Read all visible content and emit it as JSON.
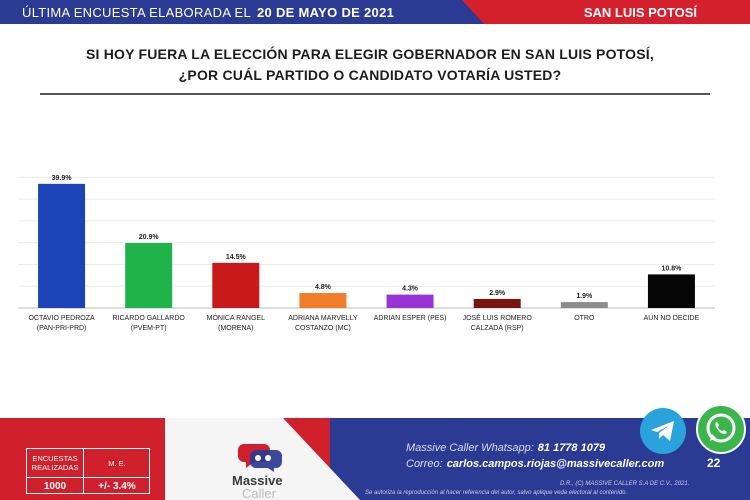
{
  "header": {
    "survey_label": "ÚLTIMA ENCUESTA ELABORADA EL",
    "survey_date": "20 DE MAYO DE 2021",
    "region": "SAN LUIS POTOSÍ"
  },
  "title": {
    "line1": "SI HOY FUERA LA ELECCIÓN PARA ELEGIR GOBERNADOR EN SAN LUIS POTOSÍ,",
    "line2": "¿POR CUÁL PARTIDO O CANDIDATO VOTARÍA USTED?"
  },
  "chart_data": {
    "type": "bar",
    "categories": [
      [
        "OCTAVIO PEDROZA",
        "(PAN-PRI-PRD)"
      ],
      [
        "RICARDO GALLARDO",
        "(PVEM-PT)"
      ],
      [
        "MÓNICA RANGEL",
        "(MORENA)"
      ],
      [
        "ADRIANA MARVELLY",
        "COSTANZO (MC)"
      ],
      [
        "ADRIAN ESPER (PES)"
      ],
      [
        "JOSÉ LUIS ROMERO",
        "CALZADA (RSP)"
      ],
      [
        "OTRO"
      ],
      [
        "AÚN NO DECIDE"
      ]
    ],
    "values": [
      39.9,
      20.9,
      14.5,
      4.8,
      4.3,
      2.9,
      1.9,
      10.8
    ],
    "value_labels": [
      "39.9%",
      "20.9%",
      "14.5%",
      "4.8%",
      "4.3%",
      "2.9%",
      "1.9%",
      "10.8%"
    ],
    "colors": [
      "#1c44b8",
      "#20b34a",
      "#c81a1a",
      "#f07d2a",
      "#9933d6",
      "#7a1410",
      "#8c8c8c",
      "#060606"
    ],
    "ylim": [
      0,
      45
    ],
    "grid": true
  },
  "footer": {
    "stats_header_1": "ENCUESTAS REALIZADAS",
    "stats_header_2": "M. E.",
    "stats_value_1": "1000",
    "stats_value_2": "+/- 3.4%",
    "logo_text_1": "Massive",
    "logo_text_2": "Caller",
    "whatsapp_label": "Massive Caller Whatsapp:",
    "whatsapp_number": "81 1778 1079",
    "email_label": "Correo:",
    "email": "carlos.campos.riojas@massivecaller.com",
    "legal_1": "D.R., (C) MASSIVE CALLER S.A DE C.V., 2021.",
    "legal_2": "Se autoriza la reproducción al hacer referencia del autor, salvo aplique veda electoral al contenido.",
    "page_number": "22"
  },
  "icons": {
    "telegram": "telegram-icon",
    "whatsapp": "whatsapp-icon"
  }
}
